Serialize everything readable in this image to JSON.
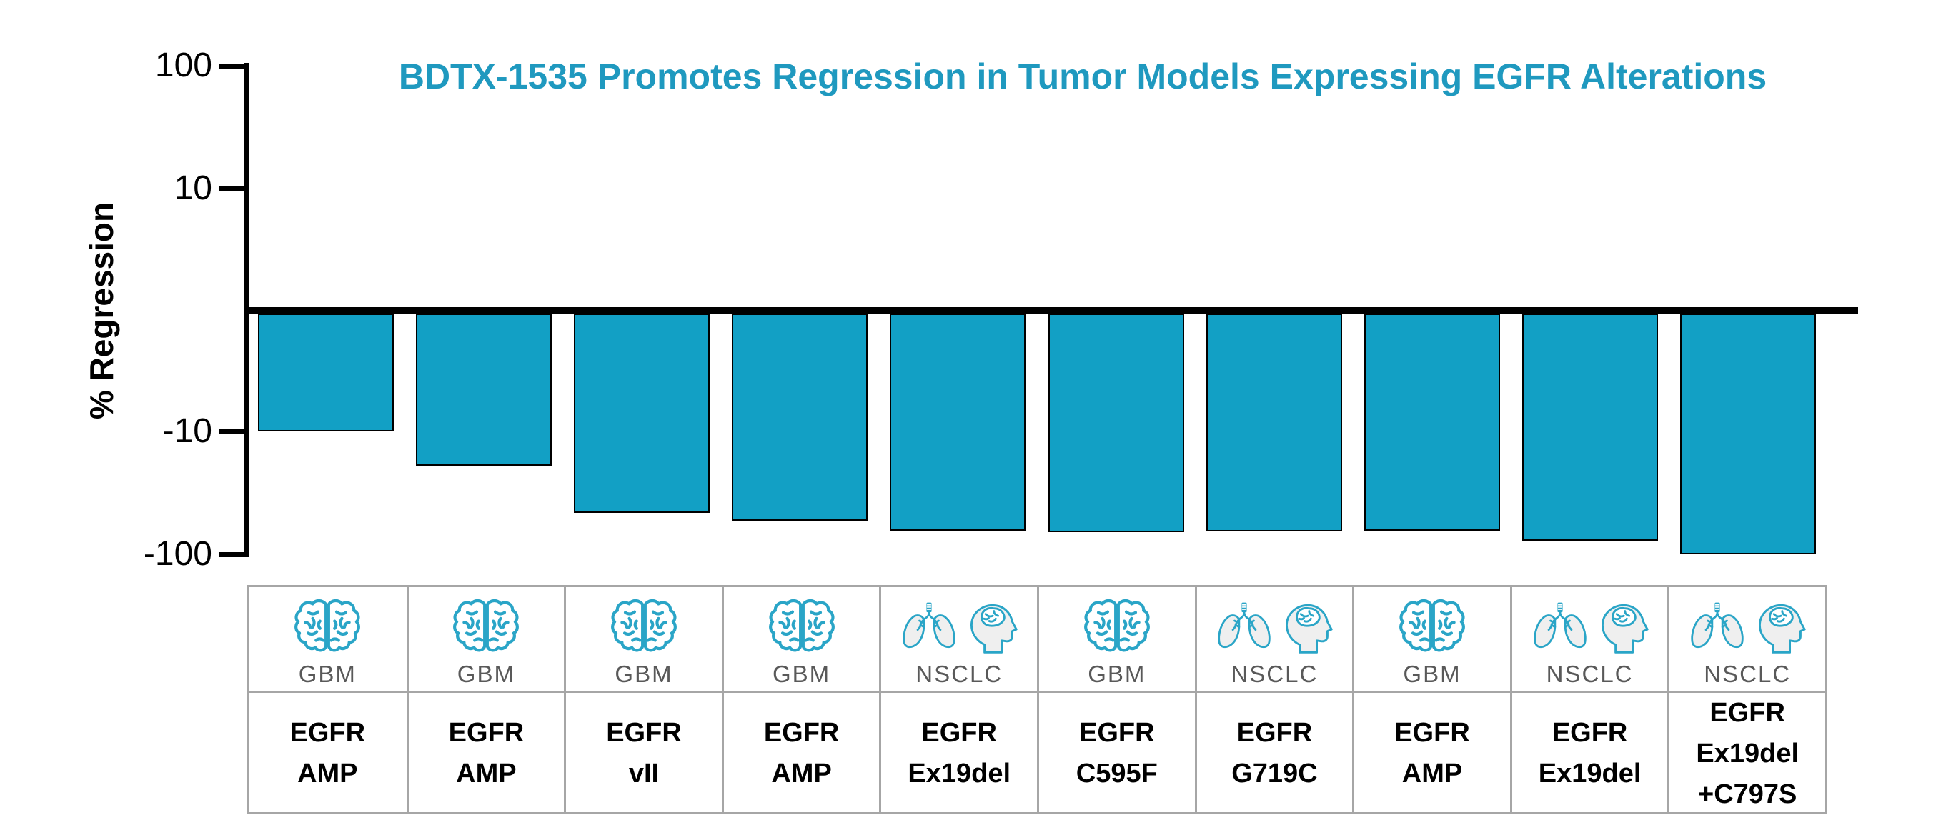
{
  "title": {
    "text": "BDTX-1535 Promotes Regression in Tumor Models Expressing EGFR Alterations"
  },
  "y_axis": {
    "label": "% Regression",
    "ticks": [
      {
        "label": "100",
        "value": 100
      },
      {
        "label": "10",
        "value": 10
      },
      {
        "label": "-10",
        "value": -10
      },
      {
        "label": "-100",
        "value": -100
      }
    ]
  },
  "chart_data": {
    "type": "bar",
    "title": "BDTX-1535 Promotes Regression in Tumor Models Expressing EGFR Alterations",
    "xlabel": "",
    "ylabel": "% Regression",
    "yscale": "symlog",
    "ylim": [
      -100,
      100
    ],
    "ytick_values": [
      100,
      10,
      -10,
      -100
    ],
    "grid": false,
    "legend": false,
    "bar_color": "#12A0C5",
    "categories": [
      "GBM EGFR AMP",
      "GBM EGFR AMP",
      "GBM EGFR vII",
      "GBM EGFR AMP",
      "NSCLC EGFR Ex19del",
      "GBM EGFR C595F",
      "NSCLC EGFR G719C",
      "GBM EGFR AMP",
      "NSCLC EGFR Ex19del",
      "NSCLC EGFR Ex19del +C797S"
    ],
    "values": [
      -10,
      -19,
      -46,
      -53,
      -64,
      -66,
      -65,
      -64,
      -78,
      -100
    ]
  },
  "models": [
    {
      "tumor_type": "GBM",
      "icons": [
        "brain-icon"
      ],
      "alteration_lines": [
        "EGFR",
        "AMP"
      ],
      "regression_pct": -10
    },
    {
      "tumor_type": "GBM",
      "icons": [
        "brain-icon"
      ],
      "alteration_lines": [
        "EGFR",
        "AMP"
      ],
      "regression_pct": -19
    },
    {
      "tumor_type": "GBM",
      "icons": [
        "brain-icon"
      ],
      "alteration_lines": [
        "EGFR",
        "vII"
      ],
      "regression_pct": -46
    },
    {
      "tumor_type": "GBM",
      "icons": [
        "brain-icon"
      ],
      "alteration_lines": [
        "EGFR",
        "AMP"
      ],
      "regression_pct": -53
    },
    {
      "tumor_type": "NSCLC",
      "icons": [
        "lungs-icon",
        "head-brain-icon"
      ],
      "alteration_lines": [
        "EGFR",
        "Ex19del"
      ],
      "regression_pct": -64
    },
    {
      "tumor_type": "GBM",
      "icons": [
        "brain-icon"
      ],
      "alteration_lines": [
        "EGFR",
        "C595F"
      ],
      "regression_pct": -66
    },
    {
      "tumor_type": "NSCLC",
      "icons": [
        "lungs-icon",
        "head-brain-icon"
      ],
      "alteration_lines": [
        "EGFR",
        "G719C"
      ],
      "regression_pct": -65
    },
    {
      "tumor_type": "GBM",
      "icons": [
        "brain-icon"
      ],
      "alteration_lines": [
        "EGFR",
        "AMP"
      ],
      "regression_pct": -64
    },
    {
      "tumor_type": "NSCLC",
      "icons": [
        "lungs-icon",
        "head-brain-icon"
      ],
      "alteration_lines": [
        "EGFR",
        "Ex19del"
      ],
      "regression_pct": -78
    },
    {
      "tumor_type": "NSCLC",
      "icons": [
        "lungs-icon",
        "head-brain-icon"
      ],
      "alteration_lines": [
        "EGFR",
        "Ex19del",
        "+C797S"
      ],
      "regression_pct": -100
    }
  ],
  "colors": {
    "bar": "#12A0C5",
    "title": "#1F99BF",
    "icon": "#2AA5C7",
    "tumor_type_text": "#595959",
    "table_border": "#A6A6A6",
    "axis": "#000000"
  }
}
